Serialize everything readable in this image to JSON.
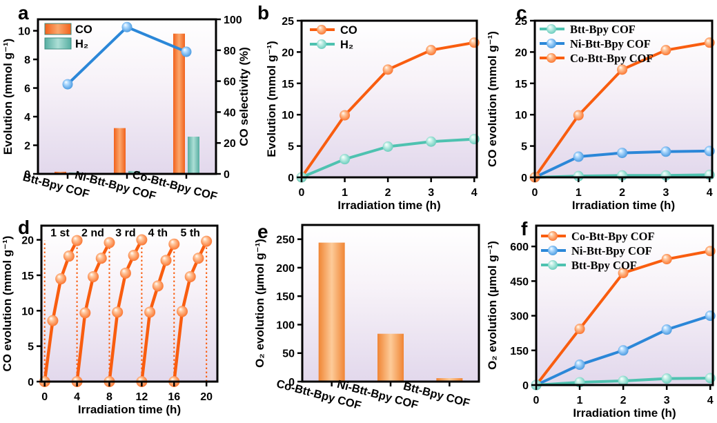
{
  "style": {
    "accent_orange": "#F95D0F",
    "accent_teal": "#4EC2B0",
    "accent_blue": "#2B87D8",
    "frame_color": "#000000",
    "text_color": "#000000",
    "plot_bg_top": "#FFFFFF",
    "plot_bg_bottom": "#E2D8EC"
  },
  "chart_data": [
    {
      "panel": "a",
      "type": "bar+line",
      "categories": [
        "Btt-Bpy COF",
        "Ni-Btt-Bpy COF",
        "Co-Btt-Bpy COF"
      ],
      "bar_series": [
        {
          "name": "CO",
          "color": "orange",
          "values": [
            0.15,
            3.2,
            9.8
          ]
        },
        {
          "name": "H₂",
          "color": "teal",
          "values": [
            0.1,
            0.2,
            2.6
          ]
        }
      ],
      "line_series": {
        "name": "CO selectivity",
        "color": "blue",
        "values": [
          58,
          95,
          79
        ]
      },
      "ylabel": "Evolution (mmol g⁻¹)",
      "ylim": [
        0,
        10.8
      ],
      "yticks": [
        0,
        2,
        4,
        6,
        8,
        10
      ],
      "y2label": "CO selectivity (%)",
      "y2lim": [
        0,
        100
      ],
      "y2ticks": [
        0,
        20,
        40,
        60,
        80,
        100
      ],
      "legend": [
        "CO",
        "H₂"
      ],
      "legend_position": "top-left"
    },
    {
      "panel": "b",
      "type": "line",
      "x": [
        0,
        1,
        2,
        3,
        4
      ],
      "series": [
        {
          "name": "CO",
          "color": "orange",
          "values": [
            0,
            9.9,
            17.2,
            20.3,
            21.5
          ]
        },
        {
          "name": "H₂",
          "color": "teal",
          "values": [
            0,
            2.9,
            4.9,
            5.7,
            6.1
          ]
        }
      ],
      "xlabel": "Irradiation time (h)",
      "ylabel": "Evolution (mmol g⁻¹)",
      "xlim": [
        0,
        4.06
      ],
      "ylim": [
        0,
        25
      ],
      "xticks": [
        0,
        1,
        2,
        3,
        4
      ],
      "yticks": [
        0,
        5,
        10,
        15,
        20,
        25
      ],
      "legend_font": "sans",
      "legend_position": "top-left"
    },
    {
      "panel": "c",
      "type": "line",
      "x": [
        0,
        1,
        2,
        3,
        4
      ],
      "series": [
        {
          "name": "Btt-Bpy COF",
          "color": "teal",
          "values": [
            0,
            0.2,
            0.3,
            0.3,
            0.4
          ]
        },
        {
          "name": "Ni-Btt-Bpy COF",
          "color": "blue",
          "values": [
            0,
            3.3,
            3.9,
            4.1,
            4.2
          ]
        },
        {
          "name": "Co-Btt-Bpy COF",
          "color": "orange",
          "values": [
            0,
            9.9,
            17.2,
            20.3,
            21.5
          ]
        }
      ],
      "xlabel": "Irradiation time (h)",
      "ylabel": "CO evolution (mmol g⁻¹)",
      "xlim": [
        0,
        4.06
      ],
      "ylim": [
        0,
        25
      ],
      "xticks": [
        0,
        1,
        2,
        3,
        4
      ],
      "yticks": [
        0,
        5,
        10,
        15,
        20,
        25
      ],
      "legend_font": "serif",
      "legend_position": "top-left"
    },
    {
      "panel": "d",
      "type": "line-cycles",
      "cycle_labels": [
        "1 st",
        "2 nd",
        "3 rd",
        "4 th",
        "5 th"
      ],
      "cycle_duration": 4,
      "cycles": [
        [
          0,
          8.6,
          14.5,
          17.7,
          19.9
        ],
        [
          0,
          9.7,
          14.8,
          17.4,
          19.6
        ],
        [
          0,
          9.8,
          15.3,
          17.8,
          20.0
        ],
        [
          0,
          9.8,
          13.5,
          17.1,
          19.4
        ],
        [
          0,
          9.9,
          14.8,
          17.4,
          19.8
        ]
      ],
      "color": "orange",
      "dotted_x": [
        0,
        4,
        8,
        12,
        16,
        20
      ],
      "xlabel": "Irradiation time (h)",
      "ylabel": "CO evolution (mmol g⁻¹)",
      "xlim": [
        -0.4,
        21.35
      ],
      "ylim": [
        0,
        22
      ],
      "xticks": [
        0,
        4,
        8,
        12,
        16,
        20
      ],
      "yticks": [
        0,
        5,
        10,
        15,
        20
      ]
    },
    {
      "panel": "e",
      "type": "bar",
      "categories": [
        "Co-Btt-Bpy COF",
        "Ni-Btt-Bpy COF",
        "Btt-Bpy COF"
      ],
      "values": [
        244,
        84,
        6
      ],
      "color": "orange",
      "ylabel": "O₂ evolution (µmol g⁻¹)",
      "ylim": [
        0,
        275
      ],
      "yticks": [
        0,
        50,
        100,
        150,
        200,
        250
      ]
    },
    {
      "panel": "f",
      "type": "line",
      "x": [
        0,
        1,
        2,
        3,
        4
      ],
      "series": [
        {
          "name": "Co-Btt-Bpy COF",
          "color": "orange",
          "values": [
            0,
            243,
            485,
            545,
            580
          ]
        },
        {
          "name": "Ni-Btt-Bpy COF",
          "color": "blue",
          "values": [
            0,
            88,
            150,
            240,
            300
          ]
        },
        {
          "name": "Btt-Bpy COF",
          "color": "teal",
          "values": [
            0,
            12,
            18,
            28,
            30
          ]
        }
      ],
      "xlabel": "Irradiation time (h)",
      "ylabel": "O₂ evolution (µmol g⁻¹)",
      "xlim": [
        0,
        4.06
      ],
      "ylim": [
        0,
        690
      ],
      "xticks": [
        0,
        1,
        2,
        3,
        4
      ],
      "yticks": [
        0,
        150,
        300,
        450,
        600
      ],
      "legend_font": "serif",
      "legend_position": "top-left"
    }
  ]
}
